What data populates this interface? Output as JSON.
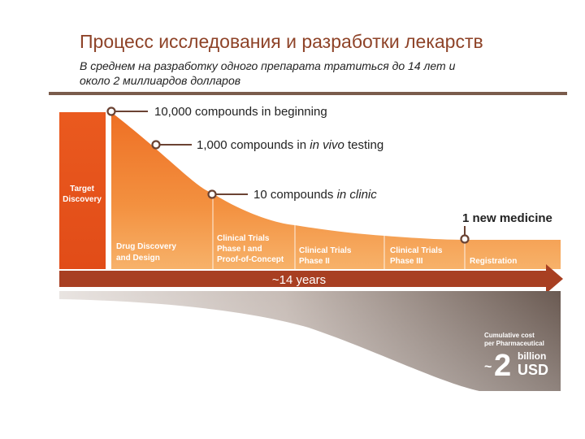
{
  "header": {
    "title": "Процесс исследования и разработки лекарств",
    "subtitle_line1": "В среднем на разработку одного препарата тратиться до 14 лет и",
    "subtitle_line2": "около 2 миллиардов долларов"
  },
  "stages": {
    "target": [
      "Target",
      "Discovery"
    ],
    "drug_discovery": [
      "Drug Discovery",
      "and Design"
    ],
    "phase1": [
      "Clinical Trials",
      "Phase I and",
      "Proof-of-Concept"
    ],
    "phase2": [
      "Clinical Trials",
      "Phase II"
    ],
    "phase3": [
      "Clinical Trials",
      "Phase III"
    ],
    "registration": [
      "Registration"
    ]
  },
  "callouts": {
    "c1": "10,000 compounds in beginning",
    "c2_pre": "1,000 compounds in ",
    "c2_em": "in vivo",
    "c2_post": " testing",
    "c3_pre": "10 compounds ",
    "c3_em": "in clinic",
    "c4": "1 new medicine"
  },
  "timeline": {
    "label": "~14 years"
  },
  "cost": {
    "note_line1": "Cumulative cost",
    "note_line2": "per Pharmaceutical",
    "tilde": "~",
    "amount": "2",
    "unit_line1": "billion",
    "unit_line2": "USD"
  },
  "colors": {
    "orange_deep": "#e8591f",
    "orange_mid": "#f28a32",
    "orange_light": "#f6ad5e",
    "arrow": "#a83f22",
    "cost_dark": "#6a5a52",
    "cost_light": "#d5ccc7",
    "title": "#8e4328",
    "callout_line": "#6b4333"
  }
}
